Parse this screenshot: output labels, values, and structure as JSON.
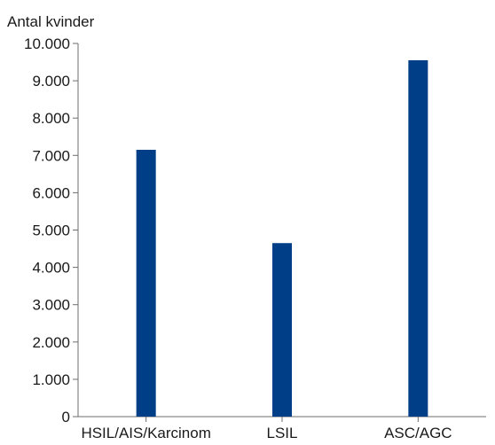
{
  "chart_data": {
    "type": "bar",
    "ylabel": "Antal kvinder",
    "categories": [
      "HSIL/AIS/Karcinom",
      "LSIL",
      "ASC/AGC"
    ],
    "values": [
      7150,
      4650,
      9550
    ],
    "ylim": [
      0,
      10000
    ],
    "yticks": [
      0,
      1000,
      2000,
      3000,
      4000,
      5000,
      6000,
      7000,
      8000,
      9000,
      10000
    ],
    "ytick_labels": [
      "0",
      "1.000",
      "2.000",
      "3.000",
      "4.000",
      "5.000",
      "6.000",
      "7.000",
      "8.000",
      "9.000",
      "10.000"
    ],
    "grid": false,
    "legend": "none",
    "bar_color": "#003f87"
  }
}
